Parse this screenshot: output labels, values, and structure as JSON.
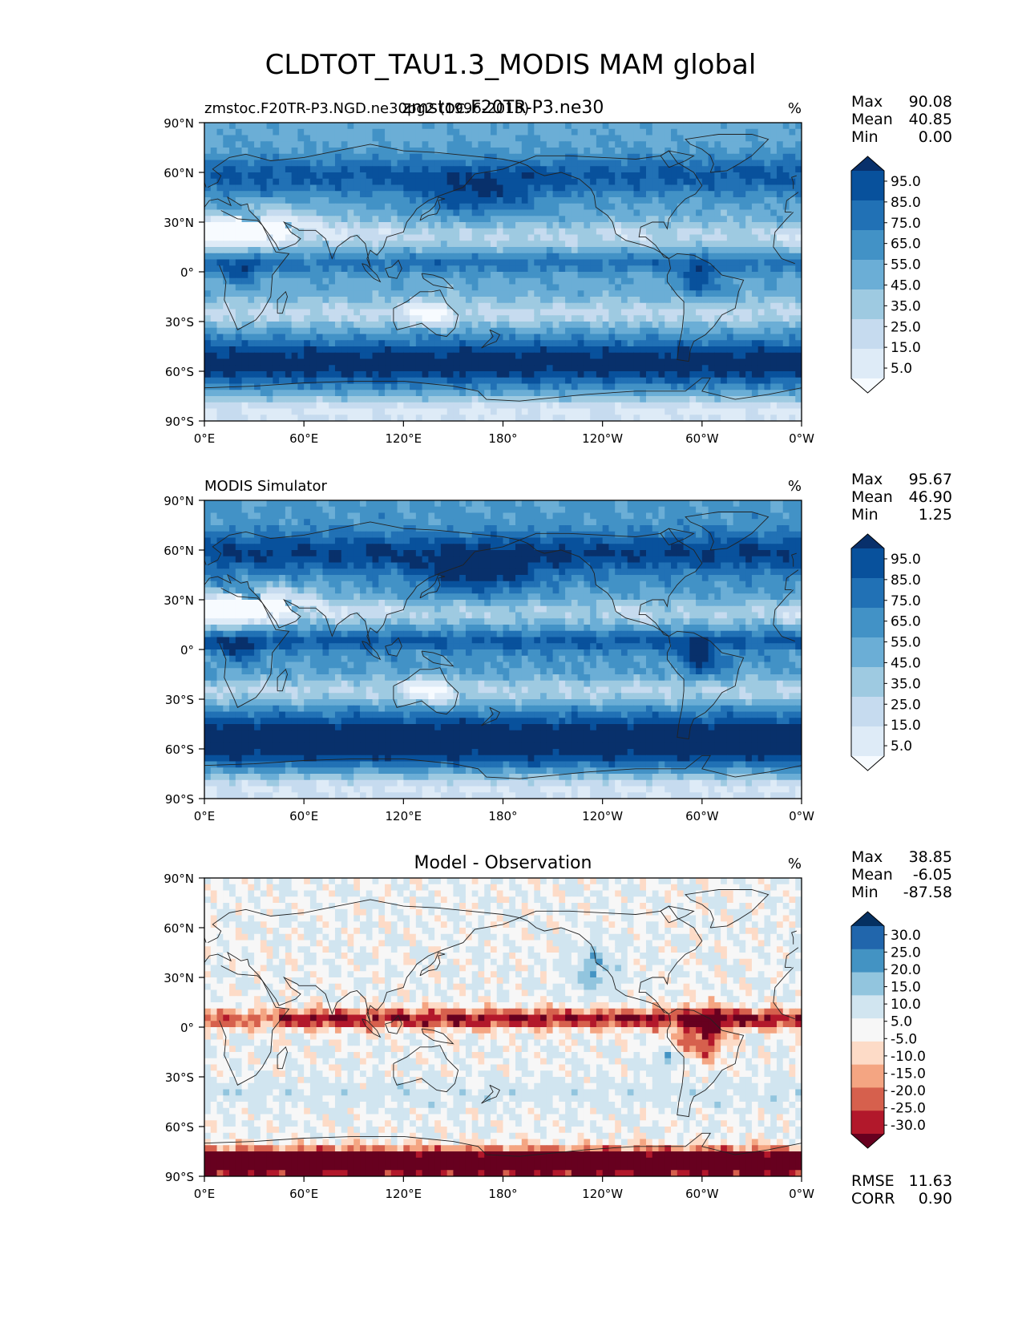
{
  "suptitle": "CLDTOT_TAU1.3_MODIS MAM global",
  "x_ticks": [
    "0°E",
    "60°E",
    "120°E",
    "180°",
    "120°W",
    "60°W",
    "0°W"
  ],
  "y_ticks": [
    "90°N",
    "60°N",
    "30°N",
    "0°",
    "30°S",
    "60°S",
    "90°S"
  ],
  "colors": {
    "blues": [
      "#f7fbff",
      "#deebf7",
      "#c6dbef",
      "#9ecae1",
      "#6baed6",
      "#4292c6",
      "#2171b5",
      "#08519c",
      "#08306b"
    ],
    "diff": [
      "#67001f",
      "#b2182b",
      "#d6604d",
      "#f4a582",
      "#fddbc7",
      "#f7f7f7",
      "#d1e5f0",
      "#92c5de",
      "#4393c3",
      "#2166ac",
      "#053061"
    ],
    "coast": "#222222"
  },
  "panels": [
    {
      "left_title": "zmstoc.F20TR-P3.NGD.ne30pg2 (1996-2013)",
      "center_title": "zmstoc.F20TR-P3.ne30",
      "units": "%",
      "stats": [
        {
          "label": "Max",
          "value": "90.08"
        },
        {
          "label": "Mean",
          "value": "40.85"
        },
        {
          "label": "Min",
          "value": "0.00"
        }
      ],
      "colorbar": {
        "levels": [
          "95.0",
          "85.0",
          "75.0",
          "65.0",
          "55.0",
          "45.0",
          "35.0",
          "25.0",
          "15.0",
          "5.0"
        ],
        "palette": "blues",
        "extend": "both"
      },
      "field": "model"
    },
    {
      "left_title": "MODIS Simulator",
      "center_title": "",
      "units": "%",
      "stats": [
        {
          "label": "Max",
          "value": "95.67"
        },
        {
          "label": "Mean",
          "value": "46.90"
        },
        {
          "label": "Min",
          "value": "1.25"
        }
      ],
      "colorbar": {
        "levels": [
          "95.0",
          "85.0",
          "75.0",
          "65.0",
          "55.0",
          "45.0",
          "35.0",
          "25.0",
          "15.0",
          "5.0"
        ],
        "palette": "blues",
        "extend": "both"
      },
      "field": "obs"
    },
    {
      "left_title": "",
      "center_title": "Model - Observation",
      "units": "%",
      "stats": [
        {
          "label": "Max",
          "value": "38.85"
        },
        {
          "label": "Mean",
          "value": "-6.05"
        },
        {
          "label": "Min",
          "value": "-87.58"
        }
      ],
      "colorbar": {
        "levels": [
          "30.0",
          "25.0",
          "20.0",
          "15.0",
          "10.0",
          "5.0",
          "-5.0",
          "-10.0",
          "-15.0",
          "-20.0",
          "-25.0",
          "-30.0"
        ],
        "palette": "diff",
        "extend": "both"
      },
      "field": "diff",
      "metrics": [
        {
          "label": "RMSE",
          "value": "11.63"
        },
        {
          "label": "CORR",
          "value": "0.90"
        }
      ]
    }
  ]
}
